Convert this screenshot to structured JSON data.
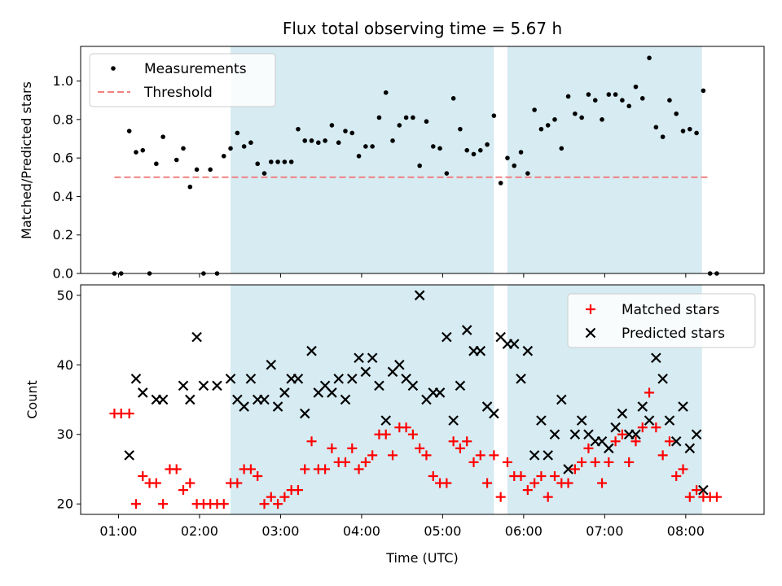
{
  "figure": {
    "title": "Flux total observing time = 5.67 h"
  },
  "chart_data": [
    {
      "type": "scatter",
      "ylabel": "Matched/Predicted stars",
      "xlim": [
        "00:32",
        "08:58"
      ],
      "ylim": [
        0,
        1.18
      ],
      "yticks": [
        0.0,
        0.2,
        0.4,
        0.6,
        0.8,
        1.0
      ],
      "shaded_intervals": [
        [
          "02:23",
          "05:38"
        ],
        [
          "05:48",
          "08:12"
        ]
      ],
      "legend_placement": "upper-left",
      "legend": [
        "Measurements",
        "Threshold"
      ],
      "threshold": {
        "value": 0.5,
        "x_range": [
          "00:57",
          "08:18"
        ],
        "color": "#f08080"
      },
      "series": [
        {
          "name": "Measurements",
          "marker": "dot",
          "color": "#000000",
          "x": [
            "00:57",
            "01:02",
            "01:08",
            "01:13",
            "01:18",
            "01:23",
            "01:28",
            "01:33",
            "01:43",
            "01:48",
            "01:53",
            "01:58",
            "02:03",
            "02:08",
            "02:13",
            "02:18",
            "02:23",
            "02:28",
            "02:33",
            "02:38",
            "02:43",
            "02:48",
            "02:53",
            "02:58",
            "03:03",
            "03:08",
            "03:13",
            "03:18",
            "03:23",
            "03:28",
            "03:33",
            "03:38",
            "03:43",
            "03:48",
            "03:53",
            "03:58",
            "04:03",
            "04:08",
            "04:13",
            "04:18",
            "04:23",
            "04:28",
            "04:33",
            "04:38",
            "04:43",
            "04:48",
            "04:53",
            "04:58",
            "05:03",
            "05:08",
            "05:13",
            "05:18",
            "05:23",
            "05:28",
            "05:33",
            "05:38",
            "05:43",
            "05:48",
            "05:53",
            "05:58",
            "06:03",
            "06:08",
            "06:13",
            "06:18",
            "06:23",
            "06:28",
            "06:33",
            "06:38",
            "06:43",
            "06:48",
            "06:53",
            "06:58",
            "07:03",
            "07:08",
            "07:13",
            "07:18",
            "07:23",
            "07:28",
            "07:33",
            "07:38",
            "07:43",
            "07:48",
            "07:53",
            "07:58",
            "08:03",
            "08:08",
            "08:13",
            "08:18",
            "08:23"
          ],
          "y": [
            0.0,
            0.0,
            0.74,
            0.63,
            0.64,
            0.0,
            0.57,
            0.71,
            0.59,
            0.65,
            0.45,
            0.54,
            0.0,
            0.54,
            0.0,
            0.61,
            0.65,
            0.73,
            0.66,
            0.68,
            0.57,
            0.52,
            0.58,
            0.58,
            0.58,
            0.58,
            0.75,
            0.69,
            0.69,
            0.68,
            0.69,
            0.77,
            0.68,
            0.74,
            0.73,
            0.61,
            0.66,
            0.66,
            0.81,
            0.94,
            0.69,
            0.77,
            0.81,
            0.81,
            0.56,
            0.79,
            0.66,
            0.65,
            0.52,
            0.91,
            0.75,
            0.64,
            0.62,
            0.64,
            0.67,
            0.82,
            0.47,
            0.6,
            0.56,
            0.63,
            0.52,
            0.85,
            0.75,
            0.77,
            0.8,
            0.65,
            0.92,
            0.83,
            0.81,
            0.93,
            0.9,
            0.8,
            0.93,
            0.93,
            0.9,
            0.87,
            0.97,
            0.91,
            1.12,
            0.76,
            0.71,
            0.9,
            0.83,
            0.74,
            0.75,
            0.73,
            0.95,
            0.0,
            0.0
          ]
        }
      ]
    },
    {
      "type": "scatter",
      "xlabel": "Time (UTC)",
      "ylabel": "Count",
      "xlim": [
        "00:32",
        "08:58"
      ],
      "ylim": [
        18.5,
        51.5
      ],
      "xticks": [
        "01:00",
        "02:00",
        "03:00",
        "04:00",
        "05:00",
        "06:00",
        "07:00",
        "08:00"
      ],
      "yticks": [
        20,
        30,
        40,
        50
      ],
      "shaded_intervals": [
        [
          "02:23",
          "05:38"
        ],
        [
          "05:48",
          "08:12"
        ]
      ],
      "legend_placement": "upper-right",
      "legend": [
        "Matched stars",
        "Predicted stars"
      ],
      "series": [
        {
          "name": "Matched stars",
          "marker": "plus",
          "color": "#ff0000",
          "x": [
            "00:57",
            "01:02",
            "01:08",
            "01:13",
            "01:18",
            "01:23",
            "01:28",
            "01:33",
            "01:38",
            "01:43",
            "01:48",
            "01:53",
            "01:58",
            "02:03",
            "02:08",
            "02:13",
            "02:18",
            "02:23",
            "02:28",
            "02:33",
            "02:38",
            "02:43",
            "02:48",
            "02:53",
            "02:58",
            "03:03",
            "03:08",
            "03:13",
            "03:18",
            "03:23",
            "03:28",
            "03:33",
            "03:38",
            "03:43",
            "03:48",
            "03:53",
            "03:58",
            "04:03",
            "04:08",
            "04:13",
            "04:18",
            "04:23",
            "04:28",
            "04:33",
            "04:38",
            "04:43",
            "04:48",
            "04:53",
            "04:58",
            "05:03",
            "05:08",
            "05:13",
            "05:18",
            "05:23",
            "05:28",
            "05:33",
            "05:38",
            "05:43",
            "05:48",
            "05:53",
            "05:58",
            "06:03",
            "06:08",
            "06:13",
            "06:18",
            "06:23",
            "06:28",
            "06:33",
            "06:38",
            "06:43",
            "06:48",
            "06:53",
            "06:58",
            "07:03",
            "07:08",
            "07:13",
            "07:18",
            "07:23",
            "07:28",
            "07:33",
            "07:38",
            "07:43",
            "07:48",
            "07:53",
            "07:58",
            "08:03",
            "08:08",
            "08:13",
            "08:18",
            "08:23"
          ],
          "y": [
            33,
            33,
            33,
            20,
            24,
            23,
            23,
            20,
            25,
            25,
            22,
            23,
            20,
            20,
            20,
            20,
            20,
            23,
            23,
            25,
            25,
            24,
            20,
            21,
            20,
            21,
            22,
            22,
            25,
            29,
            25,
            25,
            28,
            26,
            26,
            28,
            25,
            26,
            27,
            30,
            30,
            27,
            31,
            31,
            30,
            28,
            27,
            24,
            23,
            23,
            29,
            28,
            29,
            26,
            27,
            23,
            27,
            21,
            26,
            24,
            24,
            22,
            23,
            24,
            21,
            24,
            23,
            23,
            25,
            26,
            28,
            26,
            23,
            26,
            29,
            30,
            26,
            29,
            31,
            36,
            31,
            27,
            29,
            24,
            25,
            21,
            22,
            21,
            21,
            21
          ]
        },
        {
          "name": "Predicted stars",
          "marker": "x",
          "color": "#000000",
          "x": [
            "01:08",
            "01:13",
            "01:18",
            "01:28",
            "01:33",
            "01:48",
            "01:53",
            "01:58",
            "02:03",
            "02:13",
            "02:23",
            "02:28",
            "02:33",
            "02:38",
            "02:43",
            "02:48",
            "02:53",
            "02:58",
            "03:03",
            "03:08",
            "03:13",
            "03:18",
            "03:23",
            "03:28",
            "03:33",
            "03:38",
            "03:43",
            "03:48",
            "03:53",
            "03:58",
            "04:03",
            "04:08",
            "04:13",
            "04:18",
            "04:23",
            "04:28",
            "04:33",
            "04:38",
            "04:43",
            "04:48",
            "04:53",
            "04:58",
            "05:03",
            "05:08",
            "05:13",
            "05:18",
            "05:23",
            "05:28",
            "05:33",
            "05:38",
            "05:43",
            "05:48",
            "05:53",
            "05:58",
            "06:03",
            "06:08",
            "06:13",
            "06:18",
            "06:23",
            "06:28",
            "06:33",
            "06:38",
            "06:43",
            "06:48",
            "06:53",
            "06:58",
            "07:03",
            "07:08",
            "07:13",
            "07:18",
            "07:23",
            "07:28",
            "07:33",
            "07:38",
            "07:43",
            "07:48",
            "07:53",
            "07:58",
            "08:03",
            "08:08",
            "08:13"
          ],
          "y": [
            27,
            38,
            36,
            35,
            35,
            37,
            35,
            44,
            37,
            37,
            38,
            35,
            34,
            38,
            35,
            35,
            40,
            34,
            36,
            38,
            38,
            33,
            42,
            36,
            37,
            36,
            38,
            35,
            38,
            41,
            39,
            41,
            37,
            32,
            39,
            40,
            38,
            37,
            50,
            35,
            36,
            36,
            44,
            32,
            37,
            45,
            42,
            42,
            34,
            33,
            44,
            43,
            43,
            38,
            42,
            27,
            32,
            27,
            30,
            35,
            25,
            30,
            32,
            30,
            29,
            29,
            28,
            31,
            33,
            30,
            30,
            34,
            32,
            41,
            38,
            32,
            29,
            34,
            28,
            30,
            22
          ]
        }
      ]
    }
  ]
}
